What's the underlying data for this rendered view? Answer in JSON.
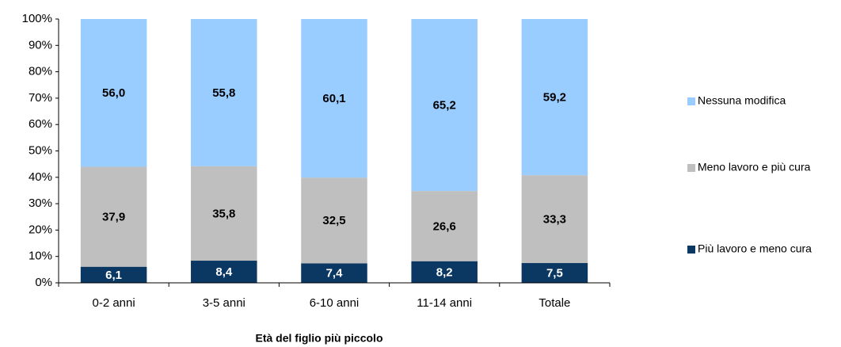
{
  "chart_data": {
    "type": "stacked_bar",
    "xlabel": "Età del figlio più piccolo",
    "categories": [
      "0-2 anni",
      "3-5 anni",
      "6-10 anni",
      "11-14 anni",
      "Totale"
    ],
    "series": [
      {
        "name": "Più lavoro e meno cura",
        "color": "#0b3763",
        "values": [
          6.1,
          8.4,
          7.4,
          8.2,
          7.5
        ],
        "value_labels": [
          "6,1",
          "8,4",
          "7,4",
          "8,2",
          "7,5"
        ]
      },
      {
        "name": "Meno lavoro e più cura",
        "color": "#bfbfbf",
        "values": [
          37.9,
          35.8,
          32.5,
          26.6,
          33.3
        ],
        "value_labels": [
          "37,9",
          "35,8",
          "32,5",
          "26,6",
          "33,3"
        ]
      },
      {
        "name": "Nessuna modifica",
        "color": "#99ccff",
        "values": [
          56.0,
          55.8,
          60.1,
          65.2,
          59.2
        ],
        "value_labels": [
          "56,0",
          "55,8",
          "60,1",
          "65,2",
          "59,2"
        ]
      }
    ],
    "ylim": [
      0,
      100
    ],
    "yticks": [
      {
        "value": 0,
        "label": "0%"
      },
      {
        "value": 10,
        "label": "10%"
      },
      {
        "value": 20,
        "label": "20%"
      },
      {
        "value": 30,
        "label": "30%"
      },
      {
        "value": 40,
        "label": "40%"
      },
      {
        "value": 50,
        "label": "50%"
      },
      {
        "value": 60,
        "label": "60%"
      },
      {
        "value": 70,
        "label": "70%"
      },
      {
        "value": 80,
        "label": "80%"
      },
      {
        "value": 90,
        "label": "90%"
      },
      {
        "value": 100,
        "label": "100%"
      }
    ],
    "legend": "right",
    "grid": false
  }
}
